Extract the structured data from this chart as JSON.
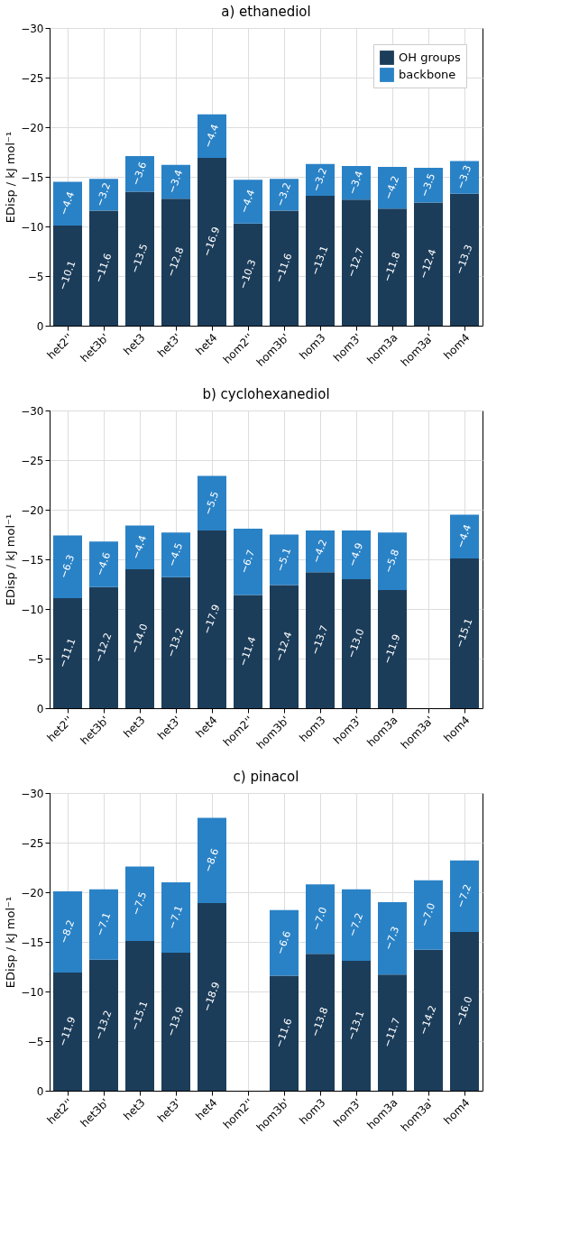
{
  "chart_data": [
    {
      "type": "bar",
      "stacked": true,
      "title": "a) ethanediol",
      "ylabel": "EDisp / kJ mol⁻¹",
      "categories": [
        "het2''",
        "het3b'",
        "het3",
        "het3'",
        "het4",
        "hom2''",
        "hom3b'",
        "hom3",
        "hom3'",
        "hom3a",
        "hom3a'",
        "hom4"
      ],
      "ylim": [
        0,
        -30
      ],
      "yticks": [
        0,
        -5,
        -10,
        -15,
        -20,
        -25,
        -30
      ],
      "grid": true,
      "legend": "top right",
      "series": [
        {
          "name": "OH groups",
          "color": "#1c3d5a",
          "values": [
            -10.1,
            -11.6,
            -13.5,
            -12.8,
            -16.9,
            -10.3,
            -11.6,
            -13.1,
            -12.7,
            -11.8,
            -12.4,
            -13.3
          ],
          "value_labels": [
            "−10.1",
            "−11.6",
            "−13.5",
            "−12.8",
            "−16.9",
            "−10.3",
            "−11.6",
            "−13.1",
            "−12.7",
            "−11.8",
            "−12.4",
            "−13.3"
          ]
        },
        {
          "name": "backbone",
          "color": "#2a82c6",
          "values": [
            -4.4,
            -3.2,
            -3.6,
            -3.4,
            -4.4,
            -4.4,
            -3.2,
            -3.2,
            -3.4,
            -4.2,
            -3.5,
            -3.3
          ],
          "value_labels": [
            "−4.4",
            "−3.2",
            "−3.6",
            "−3.4",
            "−4.4",
            "−4.4",
            "−3.2",
            "−3.2",
            "−3.4",
            "−4.2",
            "−3.5",
            "−3.3"
          ]
        }
      ]
    },
    {
      "type": "bar",
      "stacked": true,
      "title": "b) cyclohexanediol",
      "ylabel": "EDisp / kJ mol⁻¹",
      "categories": [
        "het2''",
        "het3b'",
        "het3",
        "het3'",
        "het4",
        "hom2''",
        "hom3b'",
        "hom3",
        "hom3'",
        "hom3a",
        "hom3a'",
        "hom4"
      ],
      "ylim": [
        0,
        -30
      ],
      "yticks": [
        0,
        -5,
        -10,
        -15,
        -20,
        -25,
        -30
      ],
      "grid": true,
      "legend": "top right",
      "series": [
        {
          "name": "OH groups",
          "color": "#1c3d5a",
          "values": [
            -11.1,
            -12.2,
            -14.0,
            -13.2,
            -17.9,
            -11.4,
            -12.4,
            -13.7,
            -13.0,
            -11.9,
            null,
            -15.1
          ],
          "value_labels": [
            "−11.1",
            "−12.2",
            "−14.0",
            "−13.2",
            "−17.9",
            "−11.4",
            "−12.4",
            "−13.7",
            "−13.0",
            "−11.9",
            null,
            "−15.1"
          ]
        },
        {
          "name": "backbone",
          "color": "#2a82c6",
          "values": [
            -6.3,
            -4.6,
            -4.4,
            -4.5,
            -5.5,
            -6.7,
            -5.1,
            -4.2,
            -4.9,
            -5.8,
            null,
            -4.4
          ],
          "value_labels": [
            "−6.3",
            "−4.6",
            "−4.4",
            "−4.5",
            "−5.5",
            "−6.7",
            "−5.1",
            "−4.2",
            "−4.9",
            "−5.8",
            null,
            "−4.4"
          ]
        }
      ]
    },
    {
      "type": "bar",
      "stacked": true,
      "title": "c) pinacol",
      "ylabel": "EDisp / kJ mol⁻¹",
      "categories": [
        "het2''",
        "het3b'",
        "het3",
        "het3'",
        "het4",
        "hom2''",
        "hom3b'",
        "hom3",
        "hom3'",
        "hom3a",
        "hom3a'",
        "hom4"
      ],
      "ylim": [
        0,
        -30
      ],
      "yticks": [
        0,
        -5,
        -10,
        -15,
        -20,
        -25,
        -30
      ],
      "grid": true,
      "legend": "top right",
      "series": [
        {
          "name": "OH groups",
          "color": "#1c3d5a",
          "values": [
            -11.9,
            -13.2,
            -15.1,
            -13.9,
            -18.9,
            null,
            -11.6,
            -13.8,
            -13.1,
            -11.7,
            -14.2,
            -16.0
          ],
          "value_labels": [
            "−11.9",
            "−13.2",
            "−15.1",
            "−13.9",
            "−18.9",
            null,
            "−11.6",
            "−13.8",
            "−13.1",
            "−11.7",
            "−14.2",
            "−16.0"
          ]
        },
        {
          "name": "backbone",
          "color": "#2a82c6",
          "values": [
            -8.2,
            -7.1,
            -7.5,
            -7.1,
            -8.6,
            null,
            -6.6,
            -7.0,
            -7.2,
            -7.3,
            -7.0,
            -7.2
          ],
          "value_labels": [
            "−8.2",
            "−7.1",
            "−7.5",
            "−7.1",
            "−8.6",
            null,
            "−6.6",
            "−7.0",
            "−7.2",
            "−7.3",
            "−7.0",
            "−7.2"
          ]
        }
      ]
    }
  ]
}
